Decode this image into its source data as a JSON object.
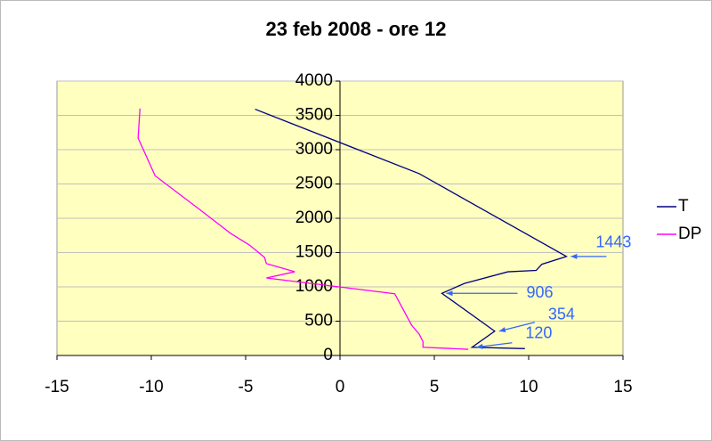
{
  "chart_data": {
    "type": "line",
    "title": "23 feb 2008 - ore 12",
    "series": [
      {
        "name": "T",
        "color": "#000080",
        "x": [
          9.8,
          7.0,
          8.2,
          5.4,
          6.6,
          8.9,
          10.4,
          10.7,
          12.0,
          4.2,
          -4.5
        ],
        "y": [
          100,
          120,
          354,
          906,
          1050,
          1220,
          1240,
          1330,
          1443,
          2650,
          3590
        ]
      },
      {
        "name": "DP",
        "color": "#ff00ff",
        "x": [
          6.8,
          4.4,
          4.4,
          4.2,
          3.8,
          2.9,
          -3.9,
          -2.4,
          -3.9,
          -4.0,
          -4.8,
          -5.8,
          -7.4,
          -9.8,
          -10.7,
          -10.6
        ],
        "y": [
          90,
          120,
          200,
          310,
          440,
          900,
          1130,
          1220,
          1340,
          1430,
          1610,
          1780,
          2120,
          2620,
          3170,
          3600
        ]
      }
    ],
    "annotations": [
      {
        "text": "1443",
        "y": 1443
      },
      {
        "text": "906",
        "y": 906
      },
      {
        "text": "354",
        "y": 354
      },
      {
        "text": "120",
        "y": 120
      }
    ],
    "annotation_color": "#3366ff",
    "xlim": [
      -15,
      15
    ],
    "xticks": [
      -15,
      -10,
      -5,
      0,
      5,
      10,
      15
    ],
    "ylim": [
      0,
      4000
    ],
    "yticks": [
      0,
      500,
      1000,
      1500,
      2000,
      2500,
      3000,
      3500,
      4000
    ],
    "grid": true,
    "legend": "right",
    "plot_background": "#ffffc0"
  }
}
